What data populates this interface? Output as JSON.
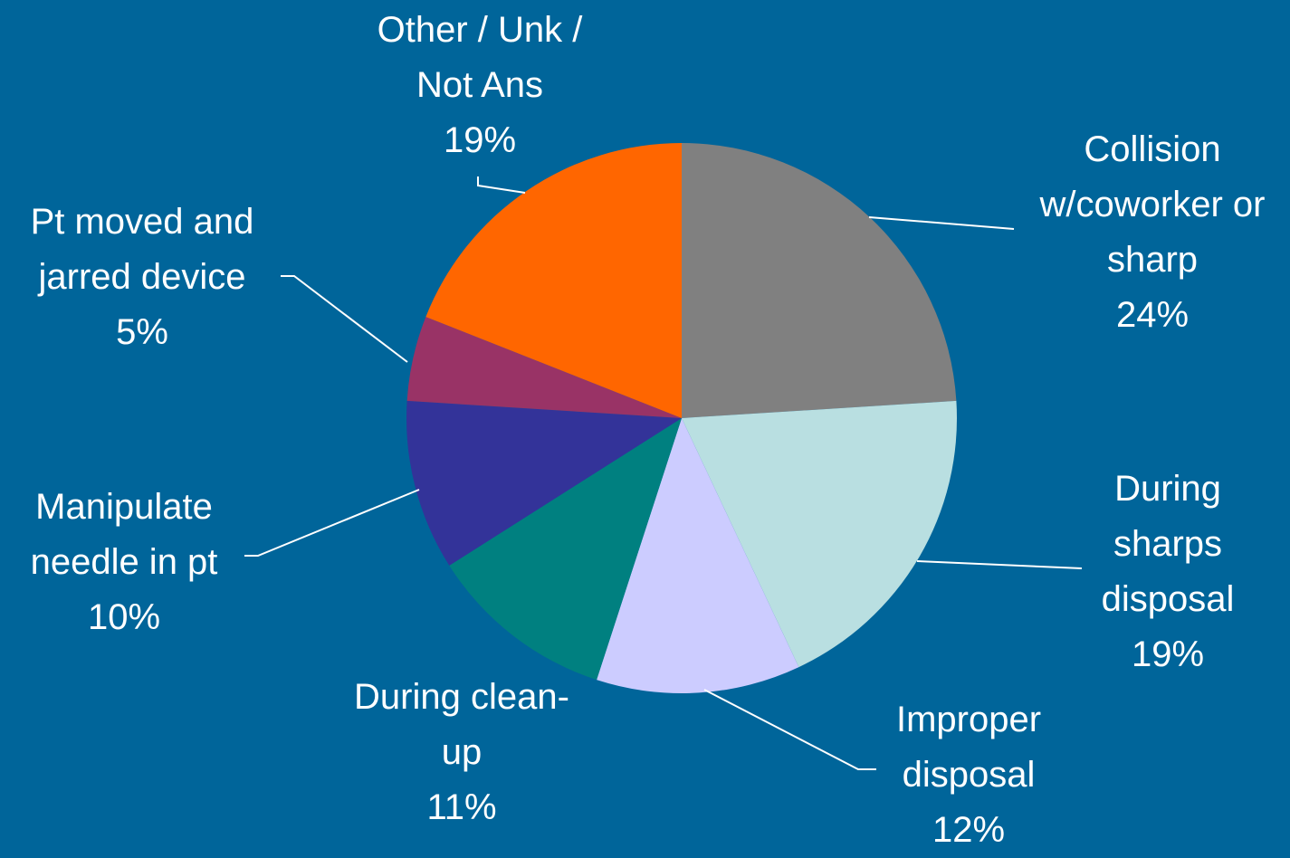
{
  "chart_data": {
    "type": "pie",
    "categories": [
      "Collision w/coworker or sharp",
      "During sharps disposal",
      "Improper disposal",
      "During clean-up",
      "Manipulate needle in pt",
      "Pt moved and jarred device",
      "Other / Unk / Not Ans"
    ],
    "values": [
      24,
      19,
      12,
      11,
      10,
      5,
      19
    ],
    "value_labels": [
      "24%",
      "19%",
      "12%",
      "11%",
      "10%",
      "5%",
      "19%"
    ],
    "colors": [
      "#808080",
      "#b9dfe1",
      "#ccccff",
      "#008080",
      "#333399",
      "#993366",
      "#ff6600"
    ]
  }
}
